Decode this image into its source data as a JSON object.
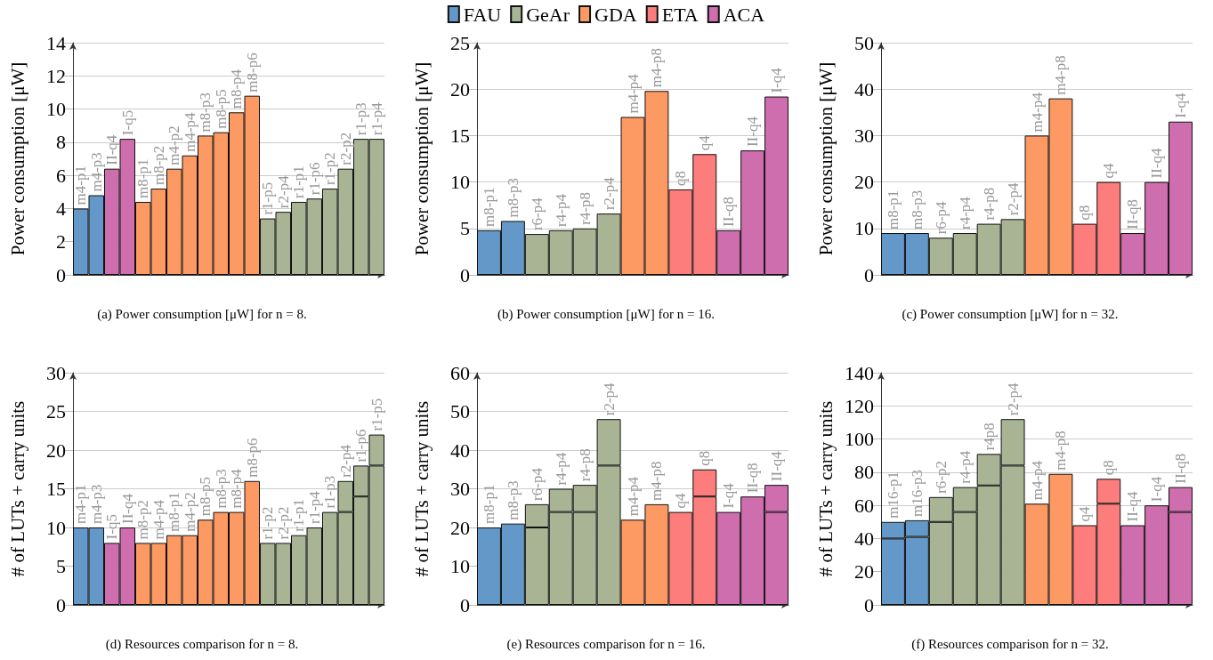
{
  "chart_data": [
    {
      "type": "bar",
      "title": "(a) Power consumption [μW] for n = 8.",
      "ylabel": "Power consumption [μW]",
      "stacked": true,
      "grid": "y",
      "tick_labels": "y",
      "ylim": [
        0,
        14
      ],
      "yticks": [
        0,
        2,
        4,
        6,
        8,
        10,
        12,
        14
      ],
      "categories": [
        "m4-p1",
        "m4-p3",
        "II-q4",
        "I-q5",
        "m8-p1",
        "m8-p2",
        "m4-p2",
        "m4-p4",
        "m8-p3",
        "m8-p5",
        "m8-p4",
        "m8-p6",
        "r1-p5",
        "r2-p4",
        "r1-p1",
        "r1-p6",
        "r1-p2",
        "r2-p2",
        "r1-p3",
        "r1-p4"
      ],
      "series": [
        {
          "color": "#6398c9",
          "values": [
            4,
            4.8,
            null,
            null,
            null,
            null,
            null,
            null,
            null,
            null,
            null,
            null,
            null,
            null,
            null,
            null,
            null,
            null,
            null,
            null
          ]
        },
        {
          "color": "#cf6eae",
          "values": [
            null,
            null,
            6.4,
            8.2,
            null,
            null,
            null,
            null,
            null,
            null,
            null,
            null,
            null,
            null,
            null,
            null,
            null,
            null,
            null,
            null
          ]
        },
        {
          "color": "#fd9962",
          "values": [
            null,
            null,
            null,
            null,
            4.4,
            5.2,
            6.4,
            7.2,
            8.4,
            8.6,
            9.8,
            10.8,
            null,
            null,
            null,
            null,
            null,
            null,
            null,
            null
          ]
        },
        {
          "color": "#a9b495",
          "values": [
            null,
            null,
            null,
            null,
            null,
            null,
            null,
            null,
            null,
            null,
            null,
            null,
            3.4,
            3.8,
            4.4,
            4.6,
            5.2,
            6.4,
            8.2,
            8.2
          ]
        }
      ]
    },
    {
      "type": "bar",
      "title": "(b) Power consumption [μW] for n = 16.",
      "ylabel": "Power consumption [μW]",
      "stacked": true,
      "grid": "y",
      "tick_labels": "y",
      "legend": "top",
      "ylim": [
        0,
        25
      ],
      "yticks": [
        0,
        5,
        10,
        15,
        20,
        25
      ],
      "categories": [
        "m8-p1",
        "m8-p3",
        "r6-p4",
        "r4-p4",
        "r4-p8",
        "r2-p4",
        "m4-p4",
        "m4-p8",
        "q8",
        "q4",
        "II-q8",
        "II-q4",
        "I-q4"
      ],
      "series": [
        {
          "name": "FAU",
          "color": "#6398c9",
          "values": [
            4.8,
            5.8,
            null,
            null,
            null,
            null,
            null,
            null,
            null,
            null,
            null,
            null,
            null
          ]
        },
        {
          "name": "GeAr",
          "color": "#a9b495",
          "values": [
            null,
            null,
            4.4,
            4.8,
            5.0,
            6.6,
            null,
            null,
            null,
            null,
            null,
            null,
            null
          ]
        },
        {
          "name": "GDA",
          "color": "#fd9962",
          "values": [
            null,
            null,
            null,
            null,
            null,
            null,
            17,
            19.8,
            null,
            null,
            null,
            null,
            null
          ]
        },
        {
          "name": "ETA",
          "color": "#fd7d7c",
          "values": [
            null,
            null,
            null,
            null,
            null,
            null,
            null,
            null,
            9.2,
            13,
            null,
            null,
            null
          ]
        },
        {
          "name": "ACA",
          "color": "#cf6eae",
          "values": [
            null,
            null,
            null,
            null,
            null,
            null,
            null,
            null,
            null,
            null,
            4.8,
            13.4,
            19.2
          ]
        }
      ]
    },
    {
      "type": "bar",
      "title": "(c) Power consumption [μW] for n = 32.",
      "ylabel": "Power consumption [μW]",
      "stacked": true,
      "grid": "y",
      "tick_labels": "y",
      "ylim": [
        0,
        50
      ],
      "yticks": [
        0,
        10,
        20,
        30,
        40,
        50
      ],
      "categories": [
        "m8-p1",
        "m8-p3",
        "r6-p4",
        "r4-p4",
        "r4-p8",
        "r2-p4",
        "m4-p4",
        "m4-p8",
        "q8",
        "q4",
        "II-q8",
        "II-q4",
        "I-q4"
      ],
      "series": [
        {
          "color": "#6398c9",
          "values": [
            9,
            9,
            null,
            null,
            null,
            null,
            null,
            null,
            null,
            null,
            null,
            null,
            null
          ]
        },
        {
          "color": "#a9b495",
          "values": [
            null,
            null,
            8,
            9,
            11,
            12,
            null,
            null,
            null,
            null,
            null,
            null,
            null
          ]
        },
        {
          "color": "#fd9962",
          "values": [
            null,
            null,
            null,
            null,
            null,
            null,
            30,
            38,
            null,
            null,
            null,
            null,
            null
          ]
        },
        {
          "color": "#fd7d7c",
          "values": [
            null,
            null,
            null,
            null,
            null,
            null,
            null,
            null,
            11,
            20,
            null,
            null,
            null
          ]
        },
        {
          "color": "#cf6eae",
          "values": [
            null,
            null,
            null,
            null,
            null,
            null,
            null,
            null,
            null,
            null,
            9,
            20,
            33
          ]
        }
      ]
    },
    {
      "type": "bar",
      "title": "(d) Resources comparison for n = 8.",
      "ylabel": "# of LUTs + carry units",
      "stacked": true,
      "grid": "y",
      "tick_labels": "y",
      "ylim": [
        0,
        30
      ],
      "yticks": [
        0,
        5,
        10,
        15,
        20,
        25,
        30
      ],
      "categories": [
        "m4-p1",
        "m4-p3",
        "I-q5",
        "II-q4",
        "m8-p2",
        "m4-p4",
        "m8-p1",
        "m4-p2",
        "m8-p5",
        "m8-p3",
        "m8-p4",
        "m8-p6",
        "r1-p2",
        "r2-p2",
        "r1-p1",
        "r1-p4",
        "r1-p3",
        "r2-p4",
        "r1-p6",
        "r1-p5"
      ],
      "series": [
        {
          "color": "#6398c9",
          "values": [
            10,
            10,
            null,
            null,
            null,
            null,
            null,
            null,
            null,
            null,
            null,
            null,
            null,
            null,
            null,
            null,
            null,
            null,
            null,
            null
          ]
        },
        {
          "color": "#cf6eae",
          "values": [
            null,
            null,
            8,
            10,
            null,
            null,
            null,
            null,
            null,
            null,
            null,
            null,
            null,
            null,
            null,
            null,
            null,
            null,
            null,
            null
          ]
        },
        {
          "color": "#fd9962",
          "values": [
            null,
            null,
            null,
            null,
            8,
            8,
            9,
            9,
            11,
            12,
            12,
            16,
            null,
            null,
            null,
            null,
            null,
            null,
            null,
            null
          ]
        },
        {
          "color": "#a9b495",
          "values": [
            null,
            null,
            null,
            null,
            null,
            null,
            null,
            null,
            null,
            null,
            null,
            null,
            8,
            8,
            9,
            10,
            12,
            12,
            14,
            18
          ]
        },
        {
          "color": "#a9b495",
          "values": [
            null,
            null,
            null,
            null,
            null,
            null,
            null,
            null,
            null,
            null,
            null,
            null,
            null,
            null,
            null,
            null,
            null,
            4,
            4,
            4
          ]
        }
      ]
    },
    {
      "type": "bar",
      "title": "(e) Resources comparison for n = 16.",
      "ylabel": "# of LUTs + carry units",
      "stacked": true,
      "grid": "y",
      "tick_labels": "y",
      "ylim": [
        0,
        60
      ],
      "yticks": [
        0,
        10,
        20,
        30,
        40,
        50,
        60
      ],
      "categories": [
        "m8-p1",
        "m8-p3",
        "r6-p4",
        "r4-p4",
        "r4-p8",
        "r2-p4",
        "m4-p4",
        "m4-p8",
        "q4",
        "q8",
        "I-q4",
        "II-q8",
        "II-q4"
      ],
      "series": [
        {
          "color": "#6398c9",
          "values": [
            20,
            21,
            null,
            null,
            null,
            null,
            null,
            null,
            null,
            null,
            null,
            null,
            null
          ]
        },
        {
          "color": "#a9b495",
          "values": [
            null,
            null,
            20,
            24,
            24,
            36,
            null,
            null,
            null,
            null,
            null,
            null,
            null
          ]
        },
        {
          "color": "#a9b495",
          "values": [
            null,
            null,
            6,
            6,
            7,
            12,
            null,
            null,
            null,
            null,
            null,
            null,
            null
          ]
        },
        {
          "color": "#fd9962",
          "values": [
            null,
            null,
            null,
            null,
            null,
            null,
            22,
            26,
            null,
            null,
            null,
            null,
            null
          ]
        },
        {
          "color": "#fd7d7c",
          "values": [
            null,
            null,
            null,
            null,
            null,
            null,
            null,
            null,
            24,
            28,
            null,
            null,
            null
          ]
        },
        {
          "color": "#fd7d7c",
          "values": [
            null,
            null,
            null,
            null,
            null,
            null,
            null,
            null,
            null,
            7,
            null,
            null,
            null
          ]
        },
        {
          "color": "#cf6eae",
          "values": [
            null,
            null,
            null,
            null,
            null,
            null,
            null,
            null,
            null,
            null,
            24,
            28,
            24
          ]
        },
        {
          "color": "#cf6eae",
          "values": [
            null,
            null,
            null,
            null,
            null,
            null,
            null,
            null,
            null,
            null,
            null,
            null,
            7
          ]
        }
      ]
    },
    {
      "type": "bar",
      "title": "(f) Resources comparison for n = 32.",
      "ylabel": "# of LUTs + carry units",
      "stacked": true,
      "grid": "y",
      "tick_labels": "y",
      "ylim": [
        0,
        140
      ],
      "yticks": [
        0,
        20,
        40,
        60,
        80,
        100,
        120,
        140
      ],
      "categories": [
        "m16-p1",
        "m16-p3",
        "r6-p2",
        "r4-p4",
        "r4p8",
        "r2-p4",
        "m4-p4",
        "m4-p8",
        "q4",
        "q8",
        "II-q4",
        "I-q4",
        "II-q8"
      ],
      "series": [
        {
          "color": "#6398c9",
          "values": [
            40,
            41,
            null,
            null,
            null,
            null,
            null,
            null,
            null,
            null,
            null,
            null,
            null
          ]
        },
        {
          "color": "#6398c9",
          "values": [
            10,
            10,
            null,
            null,
            null,
            null,
            null,
            null,
            null,
            null,
            null,
            null,
            null
          ]
        },
        {
          "color": "#a9b495",
          "values": [
            null,
            null,
            50,
            56,
            72,
            84,
            null,
            null,
            null,
            null,
            null,
            null,
            null
          ]
        },
        {
          "color": "#a9b495",
          "values": [
            null,
            null,
            15,
            15,
            19,
            28,
            null,
            null,
            null,
            null,
            null,
            null,
            null
          ]
        },
        {
          "color": "#fd9962",
          "values": [
            null,
            null,
            null,
            null,
            null,
            null,
            61,
            79,
            null,
            null,
            null,
            null,
            null
          ]
        },
        {
          "color": "#fd7d7c",
          "values": [
            null,
            null,
            null,
            null,
            null,
            null,
            null,
            null,
            48,
            61,
            null,
            null,
            null
          ]
        },
        {
          "color": "#fd7d7c",
          "values": [
            null,
            null,
            null,
            null,
            null,
            null,
            null,
            null,
            null,
            15,
            null,
            null,
            null
          ]
        },
        {
          "color": "#cf6eae",
          "values": [
            null,
            null,
            null,
            null,
            null,
            null,
            null,
            null,
            null,
            null,
            48,
            60,
            56
          ]
        },
        {
          "color": "#cf6eae",
          "values": [
            null,
            null,
            null,
            null,
            null,
            null,
            null,
            null,
            null,
            null,
            null,
            null,
            15
          ]
        }
      ]
    }
  ]
}
